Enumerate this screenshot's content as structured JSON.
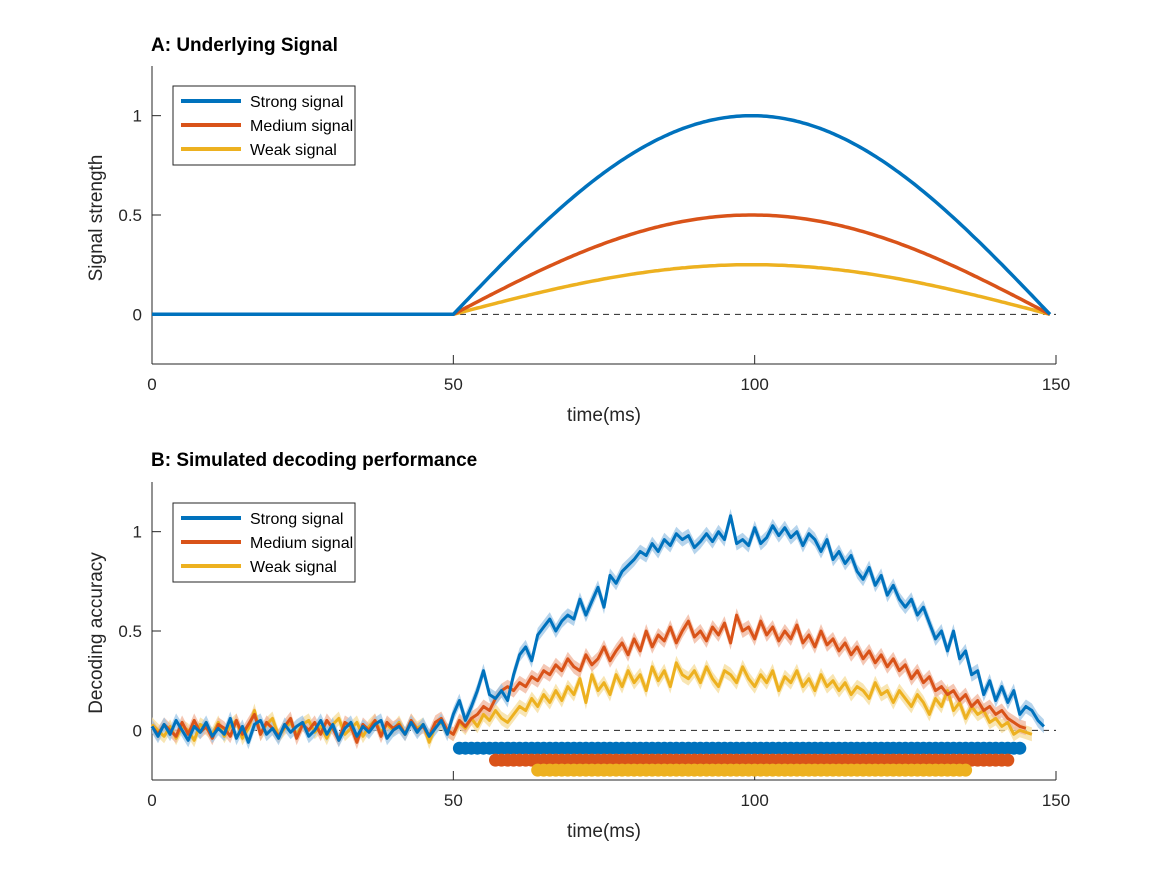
{
  "chart_data": [
    {
      "type": "line",
      "title": "A:  Underlying Signal",
      "xlabel": "time(ms)",
      "ylabel": "Signal strength",
      "xlim": [
        0,
        150
      ],
      "ylim": [
        -0.25,
        1.25
      ],
      "xticks": [
        0,
        50,
        100,
        150
      ],
      "yticks": [
        0,
        0.5,
        1
      ],
      "xtick_labels": [
        "0",
        "50",
        "100",
        "150"
      ],
      "ytick_labels": [
        "0",
        "0.5",
        "1"
      ],
      "reference_line": {
        "y": 0,
        "style": "dashed"
      },
      "grid": false,
      "legend_position": "top-left",
      "signal_onset": 50,
      "signal_offset": 149,
      "series": [
        {
          "name": "Strong signal",
          "color": "#0072BD",
          "peak": 1.0
        },
        {
          "name": "Medium signal",
          "color": "#D95319",
          "peak": 0.5
        },
        {
          "name": "Weak signal",
          "color": "#EDB120",
          "peak": 0.25
        }
      ]
    },
    {
      "type": "line",
      "title": "B:  Simulated decoding performance",
      "xlabel": "time(ms)",
      "ylabel": "Decoding accuracy",
      "xlim": [
        0,
        150
      ],
      "ylim": [
        -0.25,
        1.25
      ],
      "xticks": [
        0,
        50,
        100,
        150
      ],
      "yticks": [
        0,
        0.5,
        1
      ],
      "xtick_labels": [
        "0",
        "50",
        "100",
        "150"
      ],
      "ytick_labels": [
        "0",
        "0.5",
        "1"
      ],
      "reference_line": {
        "y": 0,
        "style": "dashed"
      },
      "grid": false,
      "legend_position": "top-left",
      "series": [
        {
          "name": "Strong signal",
          "color": "#0072BD",
          "values": [
            0.02,
            -0.03,
            0.03,
            -0.02,
            0.05,
            0.0,
            -0.05,
            0.02,
            -0.01,
            0.04,
            -0.03,
            0.01,
            -0.02,
            0.06,
            -0.04,
            0.02,
            -0.06,
            0.03,
            0.05,
            -0.02,
            0.01,
            -0.04,
            0.03,
            -0.01,
            0.02,
            0.04,
            -0.03,
            0.0,
            0.05,
            -0.02,
            0.03,
            -0.05,
            0.01,
            0.04,
            -0.03,
            0.02,
            -0.01,
            0.03,
            0.05,
            -0.04,
            0.0,
            0.02,
            -0.02,
            0.04,
            -0.01,
            0.03,
            -0.03,
            0.01,
            0.05,
            -0.02,
            0.08,
            0.15,
            0.05,
            0.12,
            0.2,
            0.3,
            0.18,
            0.16,
            0.2,
            0.15,
            0.28,
            0.38,
            0.42,
            0.35,
            0.48,
            0.52,
            0.56,
            0.5,
            0.55,
            0.58,
            0.56,
            0.66,
            0.58,
            0.65,
            0.72,
            0.62,
            0.78,
            0.74,
            0.8,
            0.83,
            0.86,
            0.9,
            0.88,
            0.94,
            0.9,
            0.96,
            0.93,
            0.99,
            0.96,
            0.98,
            0.92,
            0.95,
            0.99,
            0.95,
            1.0,
            0.96,
            1.08,
            0.94,
            0.96,
            0.93,
            1.02,
            0.94,
            0.97,
            1.03,
            0.98,
            1.02,
            0.97,
            1.0,
            0.93,
            0.99,
            0.96,
            0.9,
            0.96,
            0.86,
            0.9,
            0.84,
            0.88,
            0.8,
            0.76,
            0.82,
            0.73,
            0.78,
            0.68,
            0.73,
            0.66,
            0.62,
            0.66,
            0.58,
            0.62,
            0.54,
            0.46,
            0.5,
            0.4,
            0.5,
            0.36,
            0.4,
            0.28,
            0.3,
            0.18,
            0.25,
            0.15,
            0.22,
            0.14,
            0.2,
            0.08,
            0.12,
            0.1,
            0.05,
            0.02
          ]
        },
        {
          "name": "Medium signal",
          "color": "#D95319",
          "values": [
            0.02,
            -0.02,
            0.03,
            0.0,
            -0.03,
            0.04,
            -0.02,
            0.05,
            -0.01,
            0.02,
            -0.04,
            0.03,
            0.01,
            -0.03,
            0.05,
            -0.02,
            0.03,
            0.08,
            -0.02,
            0.04,
            0.01,
            -0.03,
            0.02,
            0.06,
            -0.04,
            0.03,
            0.0,
            0.04,
            -0.02,
            0.05,
            0.01,
            -0.05,
            0.04,
            0.02,
            -0.06,
            0.03,
            0.0,
            0.05,
            -0.03,
            0.04,
            0.01,
            0.03,
            -0.02,
            0.05,
            0.0,
            0.02,
            -0.03,
            0.04,
            0.06,
            0.0,
            -0.02,
            0.05,
            0.02,
            0.06,
            0.08,
            0.12,
            0.1,
            0.16,
            0.2,
            0.22,
            0.2,
            0.24,
            0.22,
            0.27,
            0.25,
            0.3,
            0.28,
            0.33,
            0.3,
            0.36,
            0.32,
            0.3,
            0.38,
            0.33,
            0.36,
            0.42,
            0.35,
            0.4,
            0.44,
            0.38,
            0.46,
            0.4,
            0.5,
            0.42,
            0.48,
            0.45,
            0.52,
            0.44,
            0.5,
            0.55,
            0.47,
            0.5,
            0.45,
            0.52,
            0.48,
            0.54,
            0.44,
            0.58,
            0.5,
            0.52,
            0.46,
            0.55,
            0.48,
            0.52,
            0.45,
            0.5,
            0.46,
            0.53,
            0.44,
            0.48,
            0.42,
            0.5,
            0.43,
            0.46,
            0.4,
            0.44,
            0.38,
            0.42,
            0.36,
            0.4,
            0.34,
            0.38,
            0.32,
            0.36,
            0.3,
            0.33,
            0.26,
            0.3,
            0.24,
            0.27,
            0.2,
            0.22,
            0.18,
            0.2,
            0.15,
            0.18,
            0.12,
            0.15,
            0.1,
            0.12,
            0.08,
            0.1,
            0.06,
            0.04,
            0.02,
            0.01
          ]
        },
        {
          "name": "Weak signal",
          "color": "#EDB120",
          "values": [
            0.03,
            0.0,
            -0.03,
            0.02,
            -0.04,
            0.02,
            0.0,
            -0.05,
            0.03,
            0.01,
            -0.02,
            0.04,
            -0.03,
            0.02,
            0.05,
            -0.04,
            0.01,
            0.1,
            -0.02,
            0.03,
            0.06,
            -0.03,
            0.01,
            0.04,
            -0.02,
            0.03,
            0.05,
            -0.01,
            0.02,
            -0.04,
            0.03,
            0.06,
            -0.02,
            0.01,
            0.04,
            -0.03,
            0.02,
            0.05,
            -0.01,
            0.03,
            0.0,
            0.04,
            -0.02,
            0.05,
            0.01,
            0.03,
            -0.06,
            0.02,
            0.04,
            0.0,
            -0.02,
            0.04,
            0.01,
            0.06,
            0.02,
            0.08,
            0.05,
            0.1,
            0.06,
            0.04,
            0.08,
            0.12,
            0.1,
            0.16,
            0.12,
            0.18,
            0.14,
            0.2,
            0.15,
            0.22,
            0.18,
            0.26,
            0.14,
            0.28,
            0.2,
            0.24,
            0.18,
            0.28,
            0.22,
            0.3,
            0.24,
            0.28,
            0.2,
            0.32,
            0.25,
            0.3,
            0.22,
            0.34,
            0.28,
            0.26,
            0.3,
            0.24,
            0.32,
            0.26,
            0.22,
            0.3,
            0.28,
            0.24,
            0.32,
            0.26,
            0.22,
            0.28,
            0.24,
            0.3,
            0.2,
            0.27,
            0.24,
            0.3,
            0.22,
            0.26,
            0.2,
            0.28,
            0.22,
            0.25,
            0.2,
            0.24,
            0.18,
            0.22,
            0.2,
            0.16,
            0.24,
            0.18,
            0.2,
            0.14,
            0.2,
            0.16,
            0.12,
            0.18,
            0.14,
            0.08,
            0.16,
            0.12,
            0.2,
            0.1,
            0.14,
            0.06,
            0.12,
            0.08,
            0.1,
            0.04,
            0.06,
            0.02,
            0.04,
            -0.02,
            0.0,
            -0.01,
            -0.02
          ]
        }
      ],
      "significance": [
        {
          "series": "Strong signal",
          "color": "#0072BD",
          "y": -0.09,
          "start": 51,
          "end": 144
        },
        {
          "series": "Medium signal",
          "color": "#D95319",
          "y": -0.15,
          "start": 57,
          "end": 142
        },
        {
          "series": "Weak signal",
          "color": "#EDB120",
          "y": -0.2,
          "start": 64,
          "end": 135
        }
      ]
    }
  ]
}
